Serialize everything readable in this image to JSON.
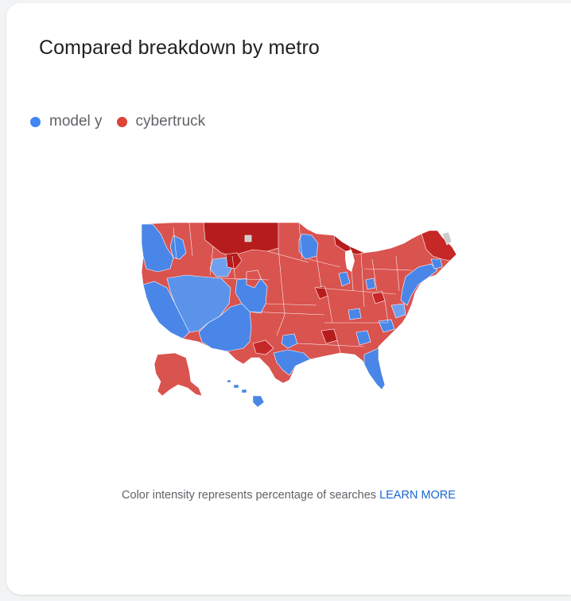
{
  "card": {
    "title": "Compared breakdown by metro"
  },
  "legend": [
    {
      "label": "model y",
      "color": "#4285f4"
    },
    {
      "label": "cybertruck",
      "color": "#db4437"
    }
  ],
  "map": {
    "colors": {
      "model_y": "#4a86e8",
      "model_y_light": "#6fa0ef",
      "cybertruck": "#d9534f",
      "cybertruck_light": "#e06c66",
      "cybertruck_dark": "#b71c1c",
      "no_data": "#cccccc",
      "border": "#ffffff"
    }
  },
  "footnote": {
    "text": "Color intensity represents percentage of searches",
    "link_label": "LEARN MORE"
  }
}
